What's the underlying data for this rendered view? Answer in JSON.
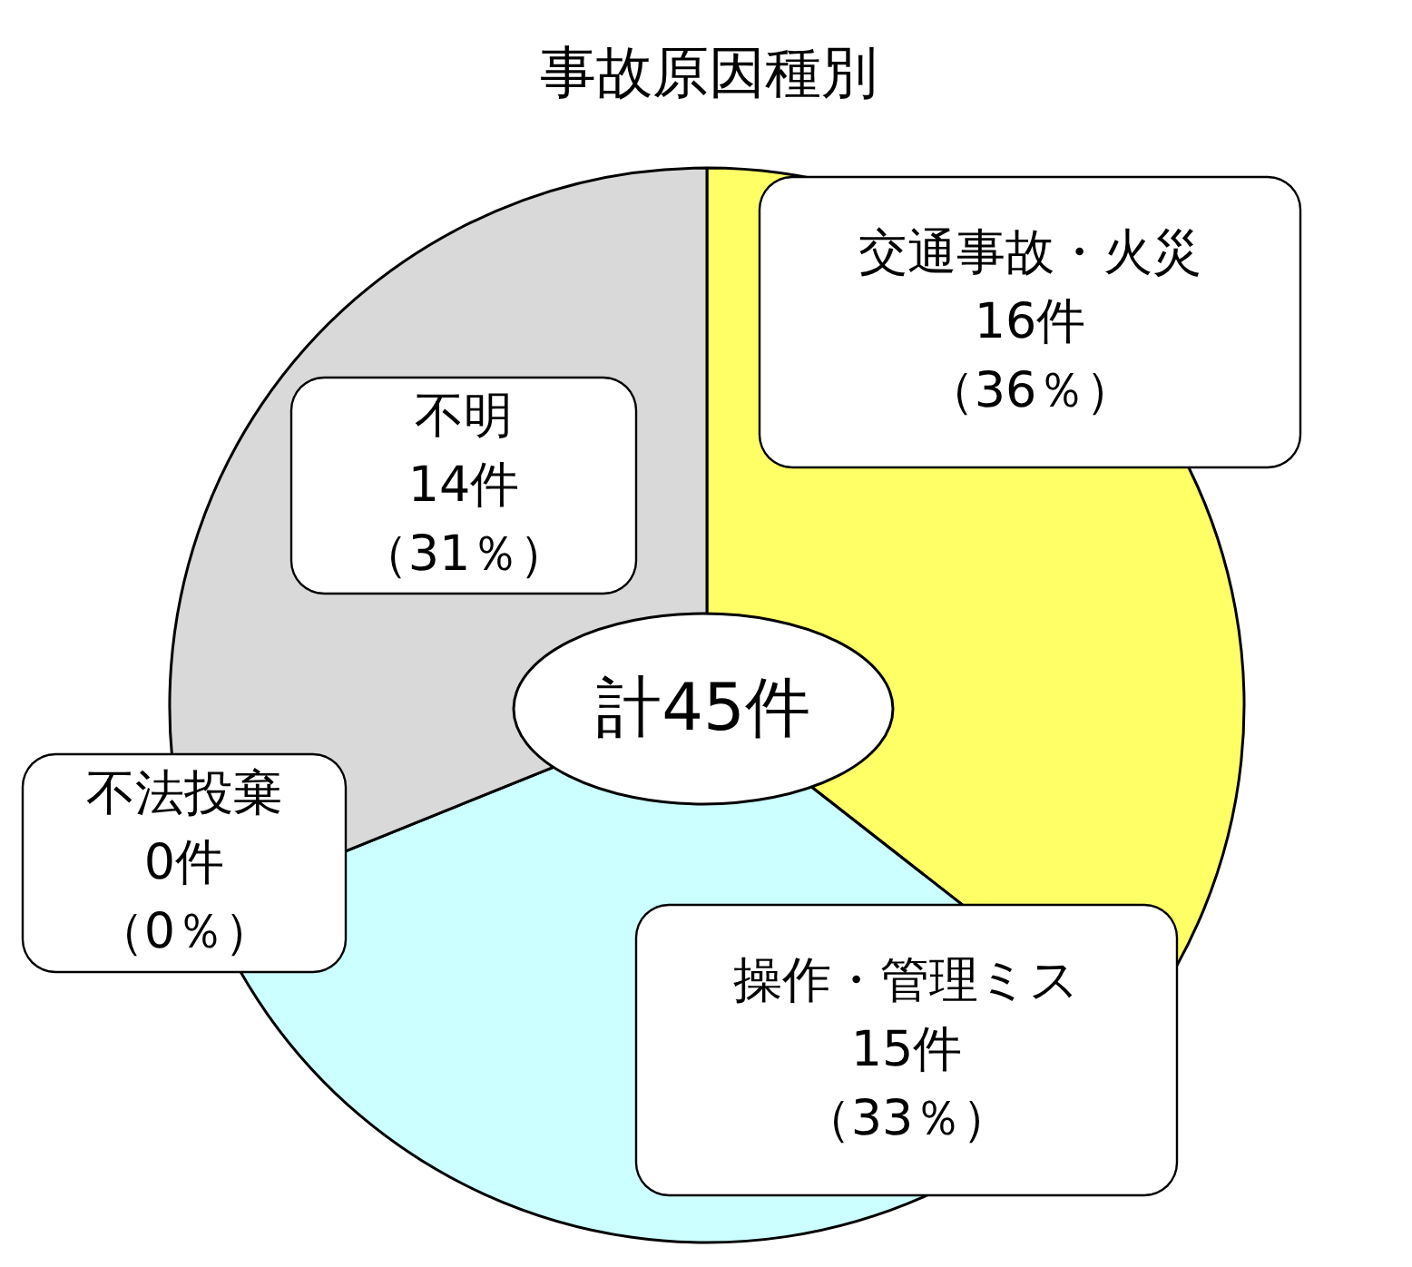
{
  "chart_data": {
    "type": "pie",
    "title": "事故原因種別",
    "categories": [
      "交通事故・火災",
      "操作・管理ミス",
      "不法投棄",
      "不明"
    ],
    "values": [
      16,
      15,
      0,
      14
    ],
    "colors": [
      "#ffff66",
      "#ccffff",
      "#ffcc99",
      "#d9d9d9"
    ],
    "value_labels": [
      "16件（36％）",
      "15件（33％）",
      "0件（0％）",
      "14件（31％）"
    ],
    "annotations": [
      "計45件"
    ]
  }
}
